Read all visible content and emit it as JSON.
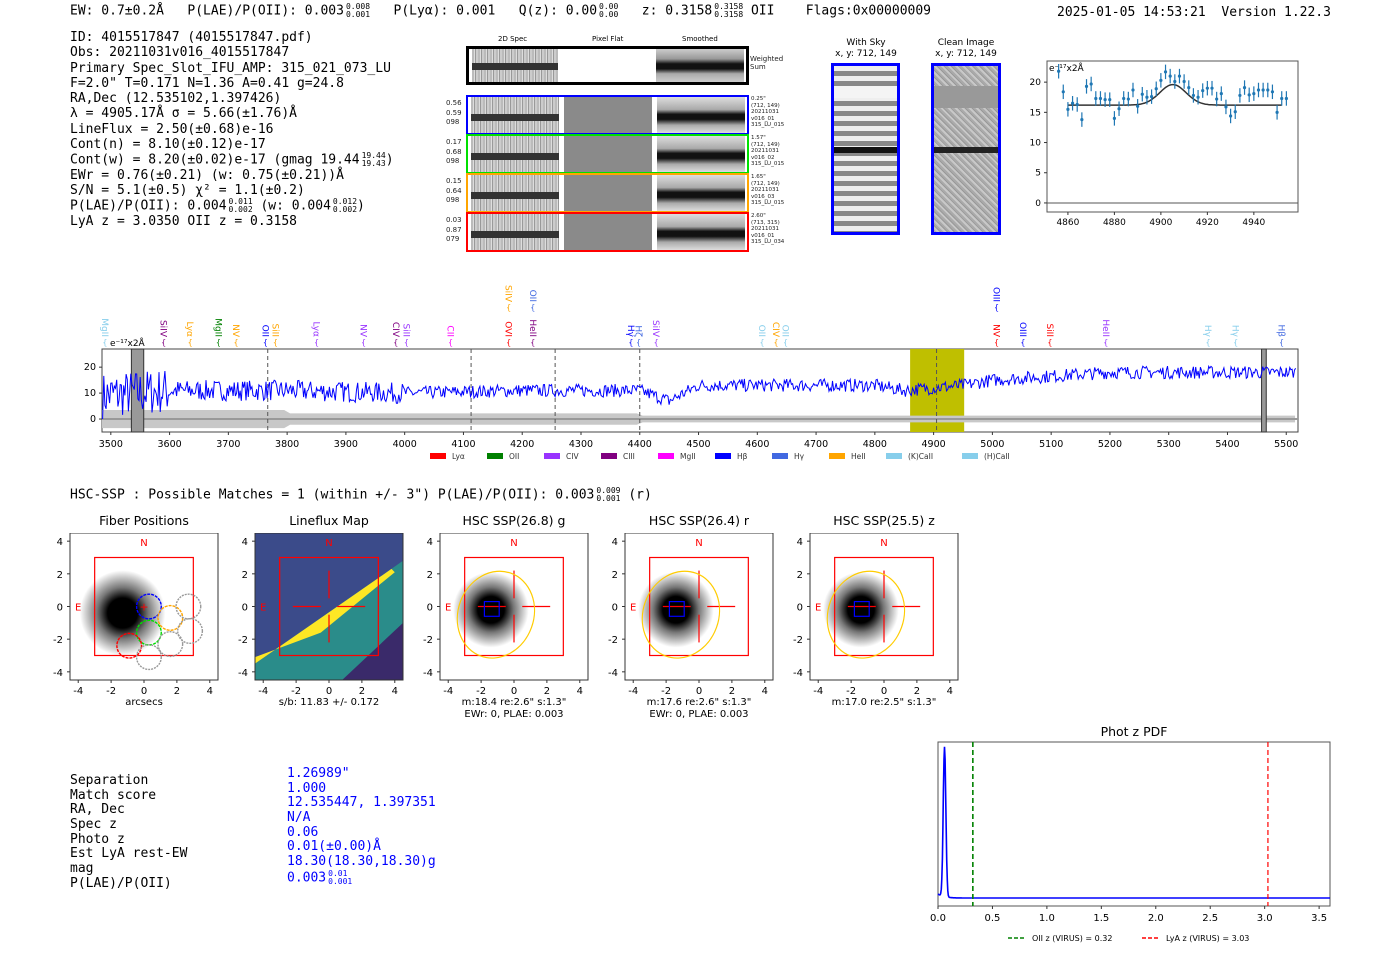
{
  "header": {
    "ew": "EW: 0.7±0.2Å",
    "plae_label": "P(LAE)/P(OII): 0.003",
    "plae_hi": "0.008",
    "plae_lo": "0.001",
    "plya": "P(Lyα): 0.001",
    "qz": "Q(z): 0.00",
    "qz_hi": "0.00",
    "qz_lo": "0.00",
    "z": "z: 0.3158",
    "z_hi": "0.3158",
    "z_lo": "0.3158",
    "z_line": "OII",
    "flags": "Flags:0x00000009",
    "timestamp": "2025-01-05 14:53:21",
    "version": "Version 1.22.3"
  },
  "info": {
    "id": "ID: 4015517847 (4015517847.pdf)",
    "obs": "Obs: 20211031v016_4015517847",
    "primary": "Primary Spec_Slot_IFU_AMP: 315_021_073_LU",
    "params": "F=2.0\"  T=0.171  N=1.36  A=0.41  g=24.8",
    "radec": "RA,Dec (12.535102,1.397426)",
    "lambda": "λ = 4905.17Å  σ = 5.66(±1.76)Å",
    "lineflux": "LineFlux = 2.50(±0.68)e-16",
    "contn": "Cont(n) = 8.10(±0.12)e-17",
    "contw": "Cont(w) = 8.20(±0.02)e-17 (gmag 19.44",
    "contw_hi": "19.44",
    "contw_lo": "19.43",
    "contw_end": ")",
    "ewr": "EWr = 0.76(±0.21) (w: 0.75(±0.21))Å",
    "sn": "S/N = 5.1(±0.5)  χ² = 1.1(±0.2)",
    "plae": "P(LAE)/P(OII): 0.004",
    "plae_hi": "0.011",
    "plae_lo": "0.002",
    "plae_w": "(w: 0.004",
    "plae_w_hi": "0.012",
    "plae_w_lo": "0.002",
    "plae_end": ")",
    "z": "LyA z = 3.0350   OII z = 0.3158"
  },
  "spec2d": {
    "col_headers": [
      "2D Spec",
      "Pixel Flat",
      "Smoothed"
    ],
    "weighted_label": "Weighted Sum",
    "rows": [
      {
        "color": "#0000ff",
        "left": [
          "0.56",
          "0.59",
          "098"
        ],
        "right": [
          "0.25\"",
          "(712, 149)",
          "20211031",
          "v016_01",
          "315_LU_015"
        ]
      },
      {
        "color": "#00e000",
        "left": [
          "0.17",
          "0.68",
          "098"
        ],
        "right": [
          "1.57\"",
          "(712, 149)",
          "20211031",
          "v016_02",
          "315_LU_015"
        ]
      },
      {
        "color": "#ffa500",
        "left": [
          "0.15",
          "0.64",
          "098"
        ],
        "right": [
          "1.65\"",
          "(712, 149)",
          "20211031",
          "v016_03",
          "315_LU_015"
        ]
      },
      {
        "color": "#ff0000",
        "left": [
          "0.03",
          "0.87",
          "079"
        ],
        "right": [
          "2.60\"",
          "(713, 315)",
          "20211031",
          "v016_01",
          "315_LU_034"
        ]
      }
    ]
  },
  "sky": {
    "with_sky_title": "With Sky",
    "with_sky_xy": "x, y: 712, 149",
    "clean_title": "Clean Image",
    "clean_xy": "x, y: 712, 149"
  },
  "hsc": {
    "summary": "HSC-SSP : Possible Matches = 1 (within +/- 3\")  P(LAE)/P(OII): 0.003",
    "summary_hi": "0.009",
    "summary_lo": "0.001",
    "summary_end": "(r)",
    "panels": [
      {
        "title": "Fiber Positions",
        "cap1": "arcsecs",
        "cap2": ""
      },
      {
        "title": "Lineflux Map",
        "cap1": "s/b: 11.83 +/- 0.172",
        "cap2": ""
      },
      {
        "title": "HSC SSP(26.8) g",
        "cap1": "m:18.4  re:2.6\"  s:1.3\"",
        "cap2": "EWr: 0, PLAE: 0.003"
      },
      {
        "title": "HSC SSP(26.4) r",
        "cap1": "m:17.6  re:2.6\"  s:1.3\"",
        "cap2": "EWr: 0, PLAE: 0.003"
      },
      {
        "title": "HSC SSP(25.5) z",
        "cap1": "m:17.0  re:2.5\"  s:1.3\"",
        "cap2": ""
      }
    ],
    "compass_n": "N",
    "compass_e": "E",
    "ticks": [
      "-4",
      "-2",
      "0",
      "2",
      "4"
    ]
  },
  "match": {
    "labels": [
      "Separation",
      "Match score",
      "RA, Dec",
      "Spec z",
      "Photo z",
      "Est LyA rest-EW",
      "mag",
      "P(LAE)/P(OII)"
    ],
    "values": [
      "1.26989\"",
      "1.000",
      "12.535447, 1.397351",
      "N/A",
      "0.06",
      "0.01(±0.00)Å",
      "18.30(18.30,18.30)g",
      "0.003"
    ],
    "plae_hi": "0.01",
    "plae_lo": "0.001"
  },
  "chart_data": [
    {
      "type": "scatter",
      "name": "line-fit zoom",
      "ylabel": "e⁻¹⁷x2Å",
      "xlim": [
        4851,
        4959
      ],
      "ylim": [
        -1.5,
        23.5
      ],
      "xticks": [
        4860,
        4880,
        4900,
        4920,
        4940
      ],
      "yticks": [
        0,
        5,
        10,
        15,
        20
      ],
      "x": [
        4856,
        4858,
        4860,
        4862,
        4864,
        4866,
        4868,
        4870,
        4872,
        4874,
        4876,
        4878,
        4880,
        4882,
        4884,
        4886,
        4888,
        4890,
        4892,
        4894,
        4896,
        4898,
        4900,
        4902,
        4904,
        4906,
        4908,
        4910,
        4912,
        4914,
        4916,
        4918,
        4920,
        4922,
        4924,
        4926,
        4928,
        4930,
        4932,
        4934,
        4936,
        4938,
        4940,
        4942,
        4944,
        4946,
        4948,
        4950,
        4952,
        4954
      ],
      "y": [
        21.8,
        18.4,
        15.5,
        16.5,
        16.3,
        13.8,
        19.3,
        19.7,
        17.3,
        17.3,
        17.1,
        17.1,
        14.0,
        15.6,
        17.3,
        17.2,
        18.7,
        16.0,
        18.0,
        17.5,
        17.6,
        18.9,
        20.3,
        21.7,
        21.0,
        20.1,
        21.0,
        20.1,
        19.1,
        17.8,
        17.5,
        18.6,
        19.0,
        19.0,
        17.2,
        18.1,
        15.9,
        14.4,
        15.1,
        17.8,
        19.1,
        17.9,
        18.1,
        18.7,
        18.7,
        18.7,
        18.4,
        15.0,
        17.3,
        17.3
      ],
      "err": 1.2,
      "fit": {
        "continuum": 16.2,
        "amplitude": 3.4,
        "center": 4905.17,
        "sigma": 5.66,
        "range": [
          4860,
          4952
        ]
      }
    },
    {
      "type": "line",
      "name": "full spectrum",
      "ylabel": "e⁻¹⁷x2Å",
      "xlim": [
        3485,
        5520
      ],
      "ylim": [
        -5,
        27
      ],
      "xticks": [
        3500,
        3600,
        3700,
        3800,
        3900,
        4000,
        4100,
        4200,
        4300,
        4400,
        4500,
        4600,
        4700,
        4800,
        4900,
        5000,
        5100,
        5200,
        5300,
        5400,
        5500
      ],
      "yticks": [
        0,
        10,
        20
      ],
      "trend_x": [
        3485,
        3600,
        3800,
        4000,
        4200,
        4400,
        4450,
        4500,
        4800,
        4850,
        4950,
        5000,
        5200,
        5500
      ],
      "trend_y": [
        9,
        11,
        11,
        10,
        11,
        11,
        7,
        13,
        13,
        11,
        13,
        15,
        18,
        18
      ],
      "highlight": [
        4860,
        4952
      ],
      "fit_line": 4905,
      "dashed": [
        3767,
        4113,
        4256,
        4400
      ],
      "masked": [
        [
          3535,
          3556
        ],
        [
          5458,
          5466
        ]
      ],
      "lines": [
        {
          "name": "MgII",
          "w": 3490,
          "c": "#87ceeb",
          "row": 0
        },
        {
          "name": "SiIV",
          "w": 3590,
          "c": "#800080",
          "row": 0
        },
        {
          "name": "Lyα",
          "w": 3635,
          "c": "#ffa500",
          "row": 0
        },
        {
          "name": "MgII",
          "w": 3683,
          "c": "#008000",
          "row": 0
        },
        {
          "name": "NV",
          "w": 3713,
          "c": "#ffa500",
          "row": 0
        },
        {
          "name": "OII",
          "w": 3763,
          "c": "#0000ff",
          "row": 0
        },
        {
          "name": "SiII",
          "w": 3780,
          "c": "#ffa500",
          "row": 0
        },
        {
          "name": "Lyα",
          "w": 3850,
          "c": "#9933ff",
          "row": 0
        },
        {
          "name": "NV",
          "w": 3930,
          "c": "#9933ff",
          "row": 0
        },
        {
          "name": "CIV",
          "w": 3985,
          "c": "#800080",
          "row": 0
        },
        {
          "name": "SiII",
          "w": 4003,
          "c": "#9933ff",
          "row": 0
        },
        {
          "name": "CII",
          "w": 4078,
          "c": "#ff00ff",
          "row": 0
        },
        {
          "name": "OVI",
          "w": 4177,
          "c": "#ff0000",
          "row": 0
        },
        {
          "name": "HeII",
          "w": 4218,
          "c": "#800080",
          "row": 0
        },
        {
          "name": "SiIV",
          "w": 4177,
          "c": "#ffa500",
          "row": 1
        },
        {
          "name": "OII",
          "w": 4218,
          "c": "#4169e1",
          "row": 1
        },
        {
          "name": "Hγ",
          "w": 4385,
          "c": "#0000ff",
          "row": 0
        },
        {
          "name": "Hζ",
          "w": 4398,
          "c": "#4169e1",
          "row": 0
        },
        {
          "name": "SiIV",
          "w": 4428,
          "c": "#9933ff",
          "row": 0
        },
        {
          "name": "OII",
          "w": 4608,
          "c": "#87ceeb",
          "row": 0
        },
        {
          "name": "CIV",
          "w": 4632,
          "c": "#ffa500",
          "row": 0
        },
        {
          "name": "OII",
          "w": 4648,
          "c": "#87ceeb",
          "row": 0
        },
        {
          "name": "NV",
          "w": 5007,
          "c": "#ff0000",
          "row": 0
        },
        {
          "name": "OIII",
          "w": 5007,
          "c": "#0000ff",
          "row": 1
        },
        {
          "name": "OIII",
          "w": 5052,
          "c": "#0000ff",
          "row": 0
        },
        {
          "name": "SiII",
          "w": 5098,
          "c": "#ff0000",
          "row": 0
        },
        {
          "name": "HeII",
          "w": 5193,
          "c": "#9933ff",
          "row": 0
        },
        {
          "name": "Hγ",
          "w": 5367,
          "c": "#87ceeb",
          "row": 0
        },
        {
          "name": "Hγ",
          "w": 5414,
          "c": "#87ceeb",
          "row": 0
        },
        {
          "name": "Hβ",
          "w": 5492,
          "c": "#4169e1",
          "row": 0
        }
      ],
      "legend": [
        {
          "name": "Lyα",
          "c": "#ff0000"
        },
        {
          "name": "OII",
          "c": "#008000"
        },
        {
          "name": "CIV",
          "c": "#9933ff"
        },
        {
          "name": "CIII",
          "c": "#800080"
        },
        {
          "name": "MgII",
          "c": "#ff00ff"
        },
        {
          "name": "Hβ",
          "c": "#0000ff"
        },
        {
          "name": "Hγ",
          "c": "#4169e1"
        },
        {
          "name": "HeII",
          "c": "#ffa500"
        },
        {
          "name": "(K)CaII",
          "c": "#87ceeb"
        },
        {
          "name": "(H)CaII",
          "c": "#87ceeb"
        }
      ],
      "legend_position": "bottom-center"
    },
    {
      "type": "line",
      "title": "Phot z PDF",
      "xlim": [
        0,
        3.6
      ],
      "xticks": [
        "0.0",
        "0.5",
        "1.0",
        "1.5",
        "2.0",
        "2.5",
        "3.0",
        "3.5"
      ],
      "peak_z": 0.06,
      "oii_z": 0.32,
      "lya_z": 3.03,
      "legend": [
        "OII z (VIRUS) = 0.32",
        "LyA z (VIRUS) = 3.03"
      ],
      "legend_position": "bottom"
    }
  ]
}
